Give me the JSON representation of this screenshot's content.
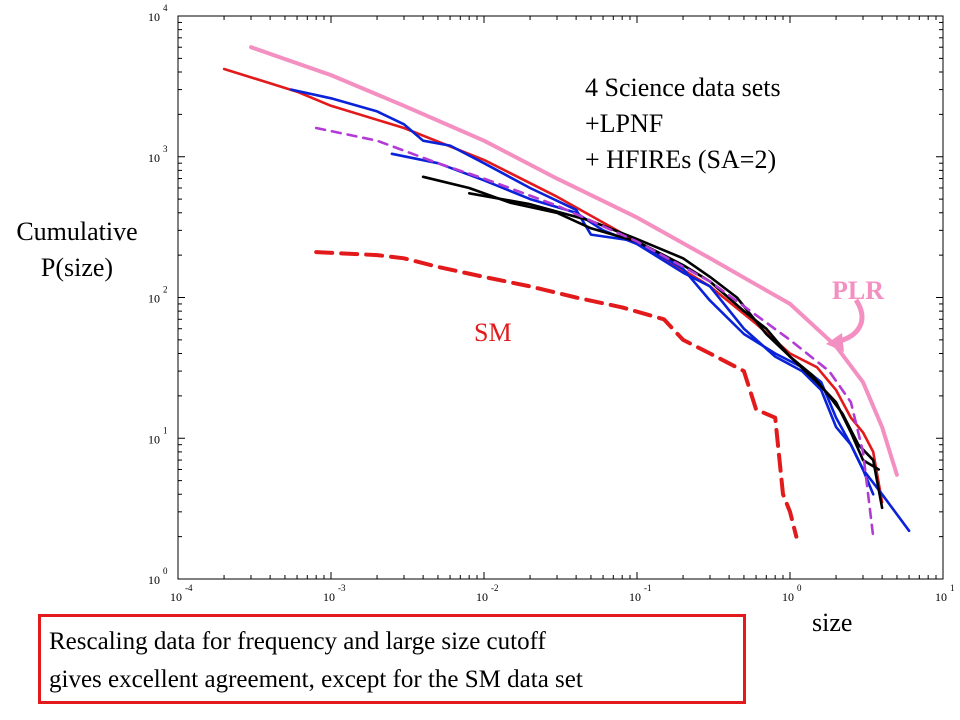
{
  "chart_data": {
    "type": "line",
    "x_scale": "log",
    "y_scale": "log",
    "xlim": [
      0.0001,
      10
    ],
    "ylim": [
      1,
      10000
    ],
    "xlabel": "size",
    "ylabel": [
      "Cumulative",
      "P(size)"
    ],
    "x_ticks": [
      {
        "base": "10",
        "exp": "-4"
      },
      {
        "base": "10",
        "exp": "-3"
      },
      {
        "base": "10",
        "exp": "-2"
      },
      {
        "base": "10",
        "exp": "-1"
      },
      {
        "base": "10",
        "exp": "0"
      },
      {
        "base": "10",
        "exp": "1"
      }
    ],
    "y_ticks": [
      {
        "base": "10",
        "exp": "0"
      },
      {
        "base": "10",
        "exp": "1"
      },
      {
        "base": "10",
        "exp": "2"
      },
      {
        "base": "10",
        "exp": "3"
      },
      {
        "base": "10",
        "exp": "4"
      }
    ],
    "annotation": [
      "4 Science data sets",
      "+LPNF",
      "+ HFIREs (SA=2)"
    ],
    "series_labels": {
      "plr": "PLR",
      "sm": "SM"
    },
    "series": [
      {
        "name": "PLR",
        "color": "#f48fc1",
        "dash": false,
        "points": [
          [
            0.0003,
            6000
          ],
          [
            0.001,
            3800
          ],
          [
            0.003,
            2300
          ],
          [
            0.01,
            1300
          ],
          [
            0.03,
            700
          ],
          [
            0.1,
            370
          ],
          [
            0.3,
            190
          ],
          [
            1,
            90
          ],
          [
            2,
            45
          ],
          [
            3,
            25
          ],
          [
            4,
            12
          ],
          [
            5,
            5.5
          ]
        ]
      },
      {
        "color": "#e31a1c",
        "dash": false,
        "points": [
          [
            0.0002,
            4200
          ],
          [
            0.0006,
            2900
          ],
          [
            0.001,
            2300
          ],
          [
            0.003,
            1600
          ],
          [
            0.01,
            950
          ],
          [
            0.03,
            520
          ],
          [
            0.1,
            250
          ],
          [
            0.3,
            120
          ],
          [
            0.6,
            65
          ],
          [
            1,
            40
          ],
          [
            1.5,
            32
          ],
          [
            2,
            22
          ],
          [
            2.5,
            14
          ],
          [
            3,
            11
          ],
          [
            3.5,
            8
          ],
          [
            4,
            3.5
          ]
        ]
      },
      {
        "color": "#0a22d8",
        "dash": false,
        "points": [
          [
            0.00055,
            3000
          ],
          [
            0.001,
            2600
          ],
          [
            0.002,
            2100
          ],
          [
            0.003,
            1700
          ],
          [
            0.004,
            1300
          ],
          [
            0.006,
            1200
          ],
          [
            0.01,
            900
          ],
          [
            0.02,
            600
          ],
          [
            0.04,
            420
          ],
          [
            0.05,
            280
          ],
          [
            0.08,
            260
          ],
          [
            0.1,
            250
          ],
          [
            0.2,
            160
          ],
          [
            0.3,
            95
          ],
          [
            0.5,
            55
          ],
          [
            0.8,
            40
          ],
          [
            1.2,
            32
          ],
          [
            1.6,
            25
          ],
          [
            2,
            14
          ],
          [
            2.5,
            9
          ],
          [
            3,
            6
          ],
          [
            4,
            4
          ],
          [
            6,
            2.2
          ]
        ]
      },
      {
        "color": "#0a22d8",
        "dash": false,
        "points": [
          [
            0.0025,
            1050
          ],
          [
            0.005,
            900
          ],
          [
            0.01,
            680
          ],
          [
            0.02,
            500
          ],
          [
            0.04,
            400
          ],
          [
            0.06,
            300
          ],
          [
            0.1,
            240
          ],
          [
            0.2,
            150
          ],
          [
            0.3,
            120
          ],
          [
            0.5,
            60
          ],
          [
            0.8,
            38
          ],
          [
            1.2,
            30
          ],
          [
            1.6,
            22
          ],
          [
            2,
            12
          ],
          [
            2.5,
            9
          ],
          [
            3,
            6
          ],
          [
            3.5,
            4
          ]
        ]
      },
      {
        "color": "#000000",
        "dash": false,
        "points": [
          [
            0.004,
            720
          ],
          [
            0.008,
            600
          ],
          [
            0.015,
            470
          ],
          [
            0.03,
            400
          ],
          [
            0.05,
            310
          ],
          [
            0.1,
            250
          ],
          [
            0.2,
            170
          ],
          [
            0.3,
            130
          ],
          [
            0.5,
            80
          ],
          [
            0.7,
            60
          ],
          [
            1,
            38
          ],
          [
            1.4,
            28
          ],
          [
            1.8,
            20
          ],
          [
            2.2,
            15
          ],
          [
            2.8,
            9
          ],
          [
            3.5,
            7
          ],
          [
            4,
            3.2
          ]
        ]
      },
      {
        "color": "#000000",
        "dash": false,
        "points": [
          [
            0.008,
            550
          ],
          [
            0.02,
            460
          ],
          [
            0.05,
            350
          ],
          [
            0.1,
            260
          ],
          [
            0.2,
            190
          ],
          [
            0.3,
            140
          ],
          [
            0.45,
            100
          ],
          [
            0.7,
            55
          ],
          [
            1,
            38
          ],
          [
            1.5,
            25
          ],
          [
            2,
            18
          ],
          [
            2.5,
            11
          ],
          [
            3,
            7
          ],
          [
            3.8,
            6
          ]
        ]
      },
      {
        "color": "#b23bd6",
        "dash": true,
        "points": [
          [
            0.0008,
            1600
          ],
          [
            0.002,
            1300
          ],
          [
            0.005,
            900
          ],
          [
            0.01,
            700
          ],
          [
            0.03,
            450
          ],
          [
            0.1,
            250
          ],
          [
            0.3,
            130
          ],
          [
            1,
            50
          ],
          [
            1.8,
            30
          ],
          [
            2.5,
            18
          ],
          [
            3,
            8
          ],
          [
            3.5,
            2
          ]
        ]
      },
      {
        "name": "SM",
        "color": "#e31a1c",
        "dash": true,
        "points": [
          [
            0.0008,
            210
          ],
          [
            0.002,
            200
          ],
          [
            0.003,
            190
          ],
          [
            0.005,
            165
          ],
          [
            0.01,
            140
          ],
          [
            0.02,
            120
          ],
          [
            0.04,
            100
          ],
          [
            0.08,
            85
          ],
          [
            0.15,
            70
          ],
          [
            0.2,
            50
          ],
          [
            0.3,
            40
          ],
          [
            0.5,
            30
          ],
          [
            0.6,
            16
          ],
          [
            0.8,
            14
          ],
          [
            0.9,
            4
          ],
          [
            1,
            3
          ],
          [
            1.1,
            2
          ]
        ]
      }
    ]
  },
  "caption": [
    "Rescaling data for frequency and large size cutoff",
    "gives excellent agreement, except for the SM data set"
  ]
}
